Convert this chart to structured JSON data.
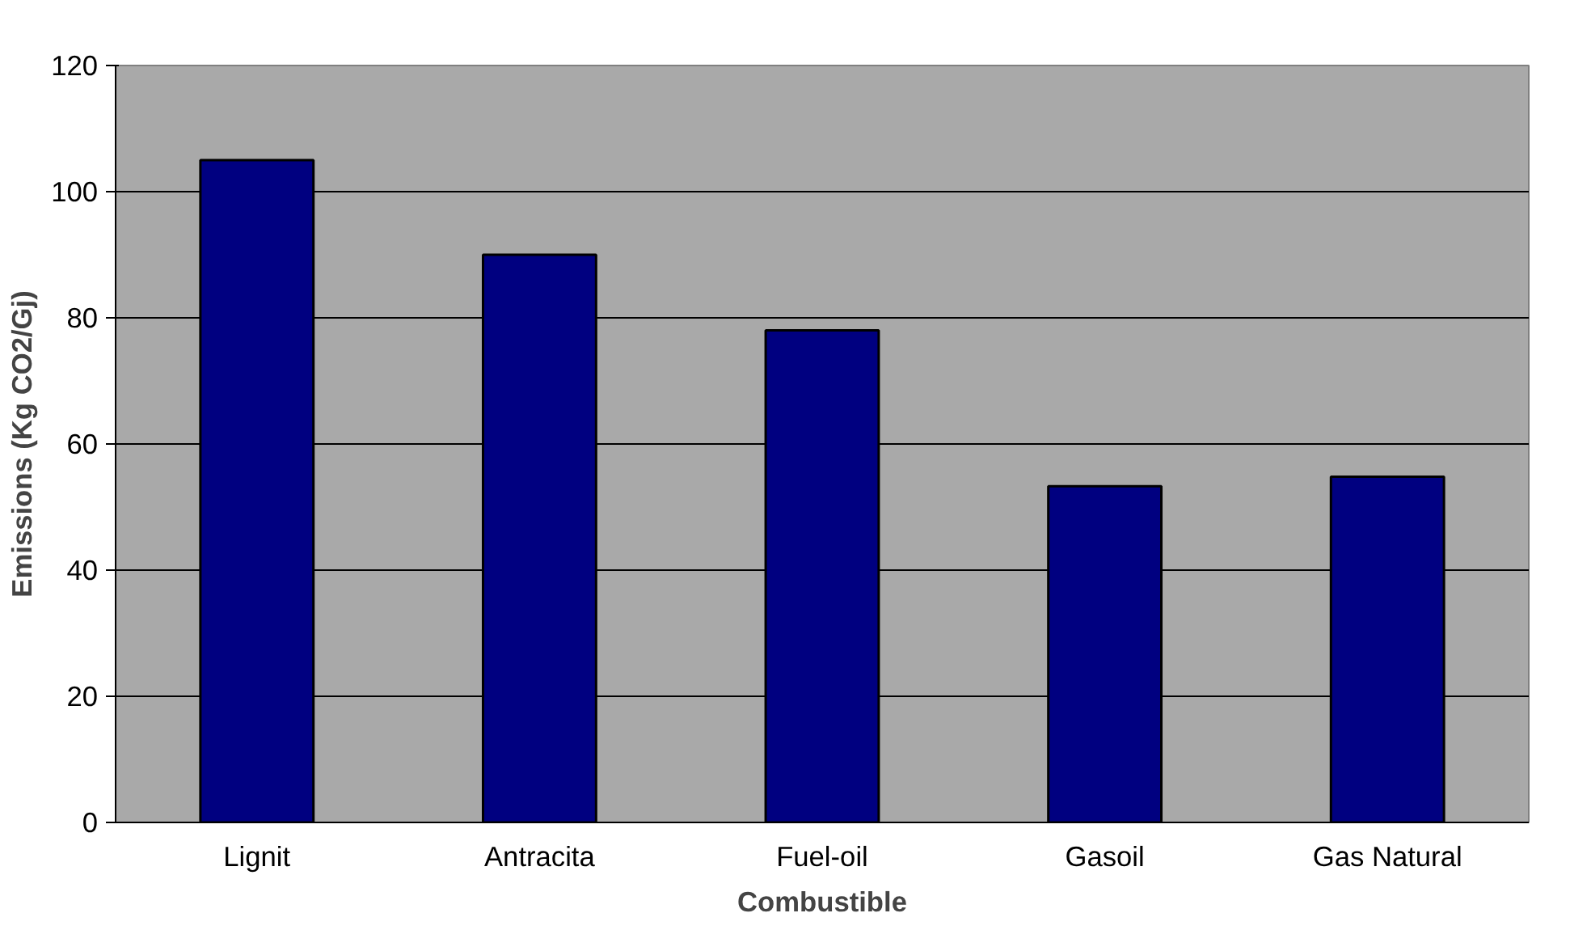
{
  "chart_data": {
    "type": "bar",
    "xlabel": "Combustible",
    "ylabel": "Emissions (Kg CO2/Gj)",
    "categories": [
      "Lignit",
      "Antracita",
      "Fuel-oil",
      "Gasoil",
      "Gas Natural"
    ],
    "values": [
      105,
      90,
      78,
      53.3,
      54.8
    ],
    "color": "#000080",
    "ylim": [
      0,
      120
    ],
    "yticks": [
      0,
      20,
      40,
      60,
      80,
      100,
      120
    ],
    "grid": "y"
  }
}
